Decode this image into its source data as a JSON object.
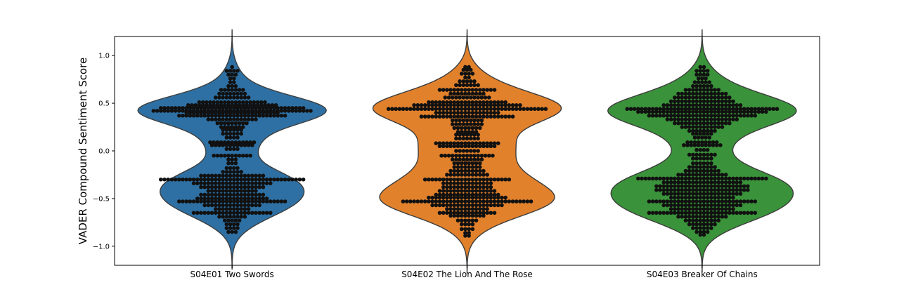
{
  "chart_data": {
    "type": "violin+swarm",
    "ylabel": "VADER Compound Sentiment Score",
    "ylim": [
      -1.2,
      1.2
    ],
    "yticks": [
      1.0,
      0.5,
      0.0,
      -0.5,
      -1.0
    ],
    "ytick_labels": [
      "1.0",
      "0.5",
      "0.0",
      "−0.5",
      "−1.0"
    ],
    "grid": false,
    "categories": [
      "S04E01 Two Swords",
      "S04E02 The Lion And The Rose",
      "S04E03 Breaker Of Chains"
    ],
    "series": [
      {
        "category": "S04E01 Two Swords",
        "color": "#2e70a3",
        "points": [
          {
            "y": 0.88,
            "n": 1
          },
          {
            "y": 0.84,
            "n": 4
          },
          {
            "y": 0.8,
            "n": 3
          },
          {
            "y": 0.76,
            "n": 2
          },
          {
            "y": 0.72,
            "n": 2
          },
          {
            "y": 0.68,
            "n": 3
          },
          {
            "y": 0.64,
            "n": 7
          },
          {
            "y": 0.6,
            "n": 8
          },
          {
            "y": 0.56,
            "n": 10
          },
          {
            "y": 0.51,
            "n": 19
          },
          {
            "y": 0.48,
            "n": 25
          },
          {
            "y": 0.45,
            "n": 40
          },
          {
            "y": 0.42,
            "n": 44
          },
          {
            "y": 0.4,
            "n": 26
          },
          {
            "y": 0.37,
            "n": 30
          },
          {
            "y": 0.33,
            "n": 14
          },
          {
            "y": 0.29,
            "n": 9
          },
          {
            "y": 0.25,
            "n": 7
          },
          {
            "y": 0.22,
            "n": 6
          },
          {
            "y": 0.18,
            "n": 6
          },
          {
            "y": 0.14,
            "n": 4
          },
          {
            "y": 0.09,
            "n": 13
          },
          {
            "y": 0.06,
            "n": 12
          },
          {
            "y": 0.02,
            "n": 4
          },
          {
            "y": -0.05,
            "n": 11
          },
          {
            "y": -0.09,
            "n": 3
          },
          {
            "y": -0.13,
            "n": 3
          },
          {
            "y": -0.18,
            "n": 4
          },
          {
            "y": -0.22,
            "n": 6
          },
          {
            "y": -0.26,
            "n": 18
          },
          {
            "y": -0.3,
            "n": 40
          },
          {
            "y": -0.34,
            "n": 22
          },
          {
            "y": -0.38,
            "n": 18
          },
          {
            "y": -0.42,
            "n": 14
          },
          {
            "y": -0.46,
            "n": 18
          },
          {
            "y": -0.5,
            "n": 20
          },
          {
            "y": -0.53,
            "n": 30
          },
          {
            "y": -0.57,
            "n": 16
          },
          {
            "y": -0.61,
            "n": 10
          },
          {
            "y": -0.65,
            "n": 22
          },
          {
            "y": -0.69,
            "n": 8
          },
          {
            "y": -0.73,
            "n": 5
          },
          {
            "y": -0.77,
            "n": 4
          },
          {
            "y": -0.81,
            "n": 4
          },
          {
            "y": -0.85,
            "n": 3
          }
        ]
      },
      {
        "category": "S04E02 The Lion And The Rose",
        "color": "#e1812c",
        "points": [
          {
            "y": 0.88,
            "n": 2
          },
          {
            "y": 0.85,
            "n": 3
          },
          {
            "y": 0.81,
            "n": 4
          },
          {
            "y": 0.77,
            "n": 2
          },
          {
            "y": 0.73,
            "n": 5
          },
          {
            "y": 0.69,
            "n": 7
          },
          {
            "y": 0.64,
            "n": 16
          },
          {
            "y": 0.6,
            "n": 10
          },
          {
            "y": 0.56,
            "n": 13
          },
          {
            "y": 0.51,
            "n": 22
          },
          {
            "y": 0.48,
            "n": 30
          },
          {
            "y": 0.44,
            "n": 44
          },
          {
            "y": 0.4,
            "n": 18
          },
          {
            "y": 0.36,
            "n": 26
          },
          {
            "y": 0.32,
            "n": 9
          },
          {
            "y": 0.28,
            "n": 9
          },
          {
            "y": 0.24,
            "n": 8
          },
          {
            "y": 0.2,
            "n": 6
          },
          {
            "y": 0.17,
            "n": 7
          },
          {
            "y": 0.13,
            "n": 7
          },
          {
            "y": 0.08,
            "n": 18
          },
          {
            "y": 0.05,
            "n": 16
          },
          {
            "y": 0.0,
            "n": 7
          },
          {
            "y": -0.05,
            "n": 15
          },
          {
            "y": -0.09,
            "n": 9
          },
          {
            "y": -0.13,
            "n": 8
          },
          {
            "y": -0.17,
            "n": 8
          },
          {
            "y": -0.21,
            "n": 10
          },
          {
            "y": -0.25,
            "n": 12
          },
          {
            "y": -0.3,
            "n": 24
          },
          {
            "y": -0.34,
            "n": 14
          },
          {
            "y": -0.38,
            "n": 14
          },
          {
            "y": -0.42,
            "n": 16
          },
          {
            "y": -0.46,
            "n": 18
          },
          {
            "y": -0.49,
            "n": 22
          },
          {
            "y": -0.53,
            "n": 36
          },
          {
            "y": -0.57,
            "n": 20
          },
          {
            "y": -0.61,
            "n": 12
          },
          {
            "y": -0.65,
            "n": 16
          },
          {
            "y": -0.68,
            "n": 10
          },
          {
            "y": -0.73,
            "n": 6
          },
          {
            "y": -0.77,
            "n": 4
          },
          {
            "y": -0.82,
            "n": 4
          },
          {
            "y": -0.86,
            "n": 2
          },
          {
            "y": -0.89,
            "n": 2
          }
        ]
      },
      {
        "category": "S04E03 Breaker Of Chains",
        "color": "#3a923a",
        "points": [
          {
            "y": 0.88,
            "n": 2
          },
          {
            "y": 0.84,
            "n": 4
          },
          {
            "y": 0.8,
            "n": 4
          },
          {
            "y": 0.76,
            "n": 3
          },
          {
            "y": 0.72,
            "n": 5
          },
          {
            "y": 0.68,
            "n": 6
          },
          {
            "y": 0.64,
            "n": 10
          },
          {
            "y": 0.6,
            "n": 14
          },
          {
            "y": 0.56,
            "n": 16
          },
          {
            "y": 0.52,
            "n": 18
          },
          {
            "y": 0.48,
            "n": 22
          },
          {
            "y": 0.44,
            "n": 42
          },
          {
            "y": 0.41,
            "n": 36
          },
          {
            "y": 0.37,
            "n": 30
          },
          {
            "y": 0.33,
            "n": 20
          },
          {
            "y": 0.29,
            "n": 16
          },
          {
            "y": 0.25,
            "n": 12
          },
          {
            "y": 0.21,
            "n": 8
          },
          {
            "y": 0.18,
            "n": 6
          },
          {
            "y": 0.14,
            "n": 5
          },
          {
            "y": 0.09,
            "n": 9
          },
          {
            "y": 0.06,
            "n": 11
          },
          {
            "y": 0.01,
            "n": 4
          },
          {
            "y": -0.04,
            "n": 8
          },
          {
            "y": -0.08,
            "n": 6
          },
          {
            "y": -0.13,
            "n": 6
          },
          {
            "y": -0.17,
            "n": 8
          },
          {
            "y": -0.21,
            "n": 10
          },
          {
            "y": -0.25,
            "n": 14
          },
          {
            "y": -0.29,
            "n": 36
          },
          {
            "y": -0.33,
            "n": 22
          },
          {
            "y": -0.37,
            "n": 26
          },
          {
            "y": -0.41,
            "n": 26
          },
          {
            "y": -0.45,
            "n": 22
          },
          {
            "y": -0.49,
            "n": 18
          },
          {
            "y": -0.53,
            "n": 30
          },
          {
            "y": -0.57,
            "n": 22
          },
          {
            "y": -0.61,
            "n": 18
          },
          {
            "y": -0.65,
            "n": 30
          },
          {
            "y": -0.69,
            "n": 14
          },
          {
            "y": -0.73,
            "n": 10
          },
          {
            "y": -0.77,
            "n": 8
          },
          {
            "y": -0.81,
            "n": 6
          },
          {
            "y": -0.85,
            "n": 4
          },
          {
            "y": -0.88,
            "n": 2
          }
        ]
      }
    ]
  }
}
